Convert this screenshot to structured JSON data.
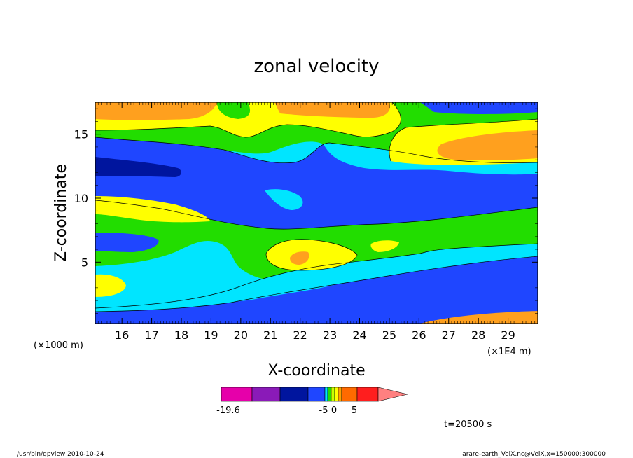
{
  "chart_data": {
    "type": "contour",
    "title": "zonal velocity",
    "xlabel": "X-coordinate",
    "ylabel": "Z-coordinate",
    "x_ticks": [
      "16",
      "17",
      "18",
      "19",
      "20",
      "21",
      "22",
      "23",
      "24",
      "25",
      "26",
      "27",
      "28",
      "29"
    ],
    "x_tick_values": [
      16,
      17,
      18,
      19,
      20,
      21,
      22,
      23,
      24,
      25,
      26,
      27,
      28,
      29
    ],
    "xlim": [
      15.1,
      30
    ],
    "x_unit_left": "(×1000 m)",
    "x_unit_right": "(×1E4 m)",
    "y_ticks": [
      "5",
      "10",
      "15"
    ],
    "y_tick_values": [
      5,
      10,
      15
    ],
    "ylim": [
      0.2,
      17.5
    ],
    "time_label": "t=20500 s",
    "colorbar": {
      "tick_labels": [
        "-19.6",
        "-5",
        "0",
        "5"
      ],
      "tick_values": [
        -19.6,
        -5,
        0,
        5
      ],
      "colors": [
        "#e600aa",
        "#8a1ab8",
        "#00159e",
        "#1f46ff",
        "#00e5ff",
        "#22dd00",
        "#c8ff00",
        "#ffff00",
        "#ffa000",
        "#ff6a00",
        "#ff1e1e",
        "#ff8080"
      ],
      "extend": "right"
    },
    "regions": [
      {
        "color": "#ffa01e",
        "label": "orange upper-left band",
        "x": [
          15.1,
          19.0
        ],
        "y": [
          16.3,
          17.5
        ]
      },
      {
        "color": "#ffff00",
        "label": "yellow band",
        "x": [
          15.1,
          22.8
        ],
        "y": [
          15.5,
          17.0
        ]
      },
      {
        "color": "#22dd00",
        "label": "green band near top",
        "x": [
          19.0,
          23.0
        ],
        "y": [
          15.0,
          17.5
        ]
      },
      {
        "color": "#ffa01e",
        "label": "orange core right",
        "x": [
          26.6,
          30.0
        ],
        "y": [
          12.7,
          14.3
        ]
      },
      {
        "color": "#ffff00",
        "label": "yellow patch right",
        "x": [
          25.5,
          30.0
        ],
        "y": [
          12.0,
          15.2
        ]
      },
      {
        "color": "#1f46ff",
        "label": "upper blue band",
        "x": [
          15.1,
          30.0
        ],
        "y": [
          9.0,
          14.5
        ]
      },
      {
        "color": "#00159e",
        "label": "dark blue core",
        "x": [
          15.1,
          18.0
        ],
        "y": [
          11.9,
          13.3
        ]
      },
      {
        "color": "#00e5ff",
        "label": "cyan island",
        "x": [
          20.9,
          22.0
        ],
        "y": [
          9.2,
          10.6
        ]
      },
      {
        "color": "#ffff00",
        "label": "yellow left band",
        "x": [
          15.1,
          18.5
        ],
        "y": [
          8.6,
          10.2
        ]
      },
      {
        "color": "#22dd00",
        "label": "middle green band",
        "x": [
          15.1,
          30.0
        ],
        "y": [
          4.5,
          8.5
        ]
      },
      {
        "color": "#ffff00",
        "label": "yellow blob center",
        "x": [
          20.8,
          22.6
        ],
        "y": [
          4.5,
          6.5
        ]
      },
      {
        "color": "#ffa01e",
        "label": "orange blob center",
        "x": [
          21.7,
          22.3
        ],
        "y": [
          4.8,
          5.8
        ]
      },
      {
        "color": "#ffff00",
        "label": "small yellow blob",
        "x": [
          24.4,
          25.3
        ],
        "y": [
          5.6,
          6.3
        ]
      },
      {
        "color": "#1f46ff",
        "label": "blue left blob",
        "x": [
          15.1,
          16.9
        ],
        "y": [
          5.8,
          7.3
        ]
      },
      {
        "color": "#00e5ff",
        "label": "cyan lower band",
        "x": [
          15.1,
          24.4
        ],
        "y": [
          1.3,
          7.0
        ]
      },
      {
        "color": "#ffff00",
        "label": "yellow lower left",
        "x": [
          15.1,
          15.9
        ],
        "y": [
          2.4,
          4.4
        ]
      },
      {
        "color": "#1f46ff",
        "label": "lower blue band",
        "x": [
          15.1,
          30.0
        ],
        "y": [
          0.2,
          5.2
        ]
      },
      {
        "color": "#ffa01e",
        "label": "orange bottom right",
        "x": [
          26.5,
          30.0
        ],
        "y": [
          0.2,
          0.8
        ]
      }
    ]
  },
  "footer": {
    "left": "/usr/bin/gpview   2010-10-24",
    "right": "arare-earth_VelX.nc@VelX,x=150000:300000"
  }
}
